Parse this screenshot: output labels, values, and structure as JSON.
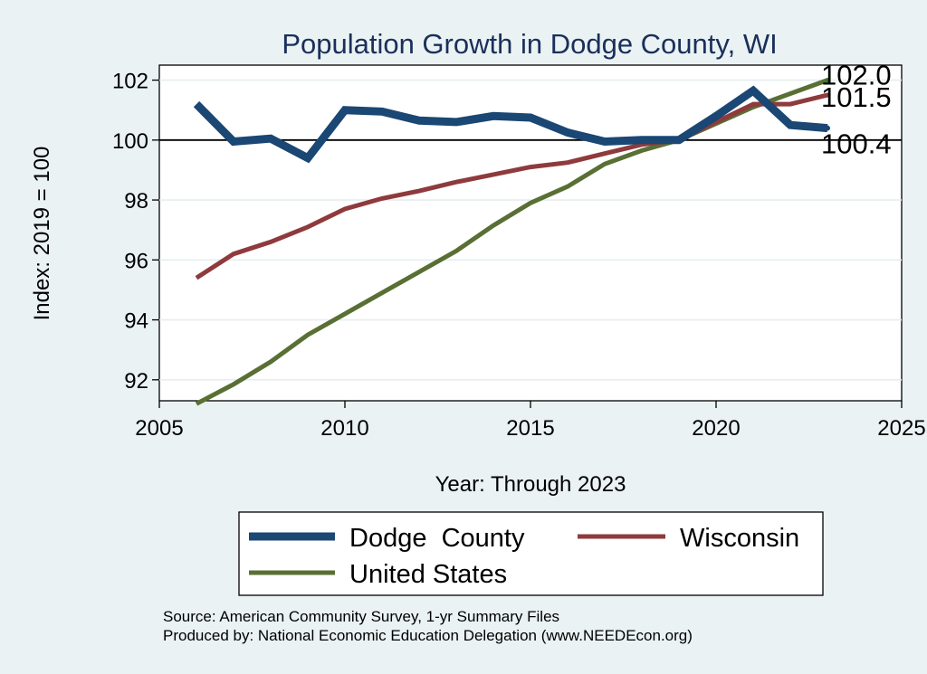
{
  "chart_data": {
    "type": "line",
    "title": "Population Growth in Dodge County, WI",
    "xlabel": "Year: Through 2023",
    "ylabel": "Index: 2019 = 100",
    "xlim": [
      2005,
      2025
    ],
    "ylim": [
      91.3,
      102.5
    ],
    "xticks": [
      "2005",
      "2010",
      "2015",
      "2020",
      "2025"
    ],
    "yticks": [
      "92",
      "94",
      "96",
      "98",
      "100",
      "102"
    ],
    "grid": true,
    "reference_line": 100,
    "legend_position": "bottom",
    "x": [
      2006,
      2007,
      2008,
      2009,
      2010,
      2011,
      2012,
      2013,
      2014,
      2015,
      2016,
      2017,
      2018,
      2019,
      2020,
      2021,
      2022,
      2023
    ],
    "series": [
      {
        "name": "Dodge  County",
        "color": "#1a4773",
        "values": [
          101.2,
          99.95,
          100.05,
          99.4,
          101.0,
          100.95,
          100.65,
          100.6,
          100.8,
          100.75,
          100.25,
          99.95,
          100.0,
          100.0,
          100.8,
          101.65,
          100.5,
          100.4
        ],
        "end_label": "100.4"
      },
      {
        "name": "Wisconsin",
        "color": "#8f3a3c",
        "values": [
          95.4,
          96.2,
          96.6,
          97.1,
          97.7,
          98.05,
          98.3,
          98.6,
          98.85,
          99.1,
          99.25,
          99.55,
          99.85,
          100.0,
          100.6,
          101.2,
          101.2,
          101.5
        ],
        "end_label": "101.5"
      },
      {
        "name": "United States",
        "color": "#596f34",
        "values": [
          91.2,
          91.85,
          92.6,
          93.5,
          94.2,
          94.9,
          95.6,
          96.3,
          97.15,
          97.9,
          98.45,
          99.2,
          99.65,
          100.0,
          100.55,
          101.1,
          101.55,
          102.0
        ],
        "end_label": "102.0"
      }
    ],
    "source": "Source: American Community Survey, 1-yr Summary Files",
    "producer": "Produced by: National Economic Education Delegation (www.NEEDEcon.org)"
  }
}
